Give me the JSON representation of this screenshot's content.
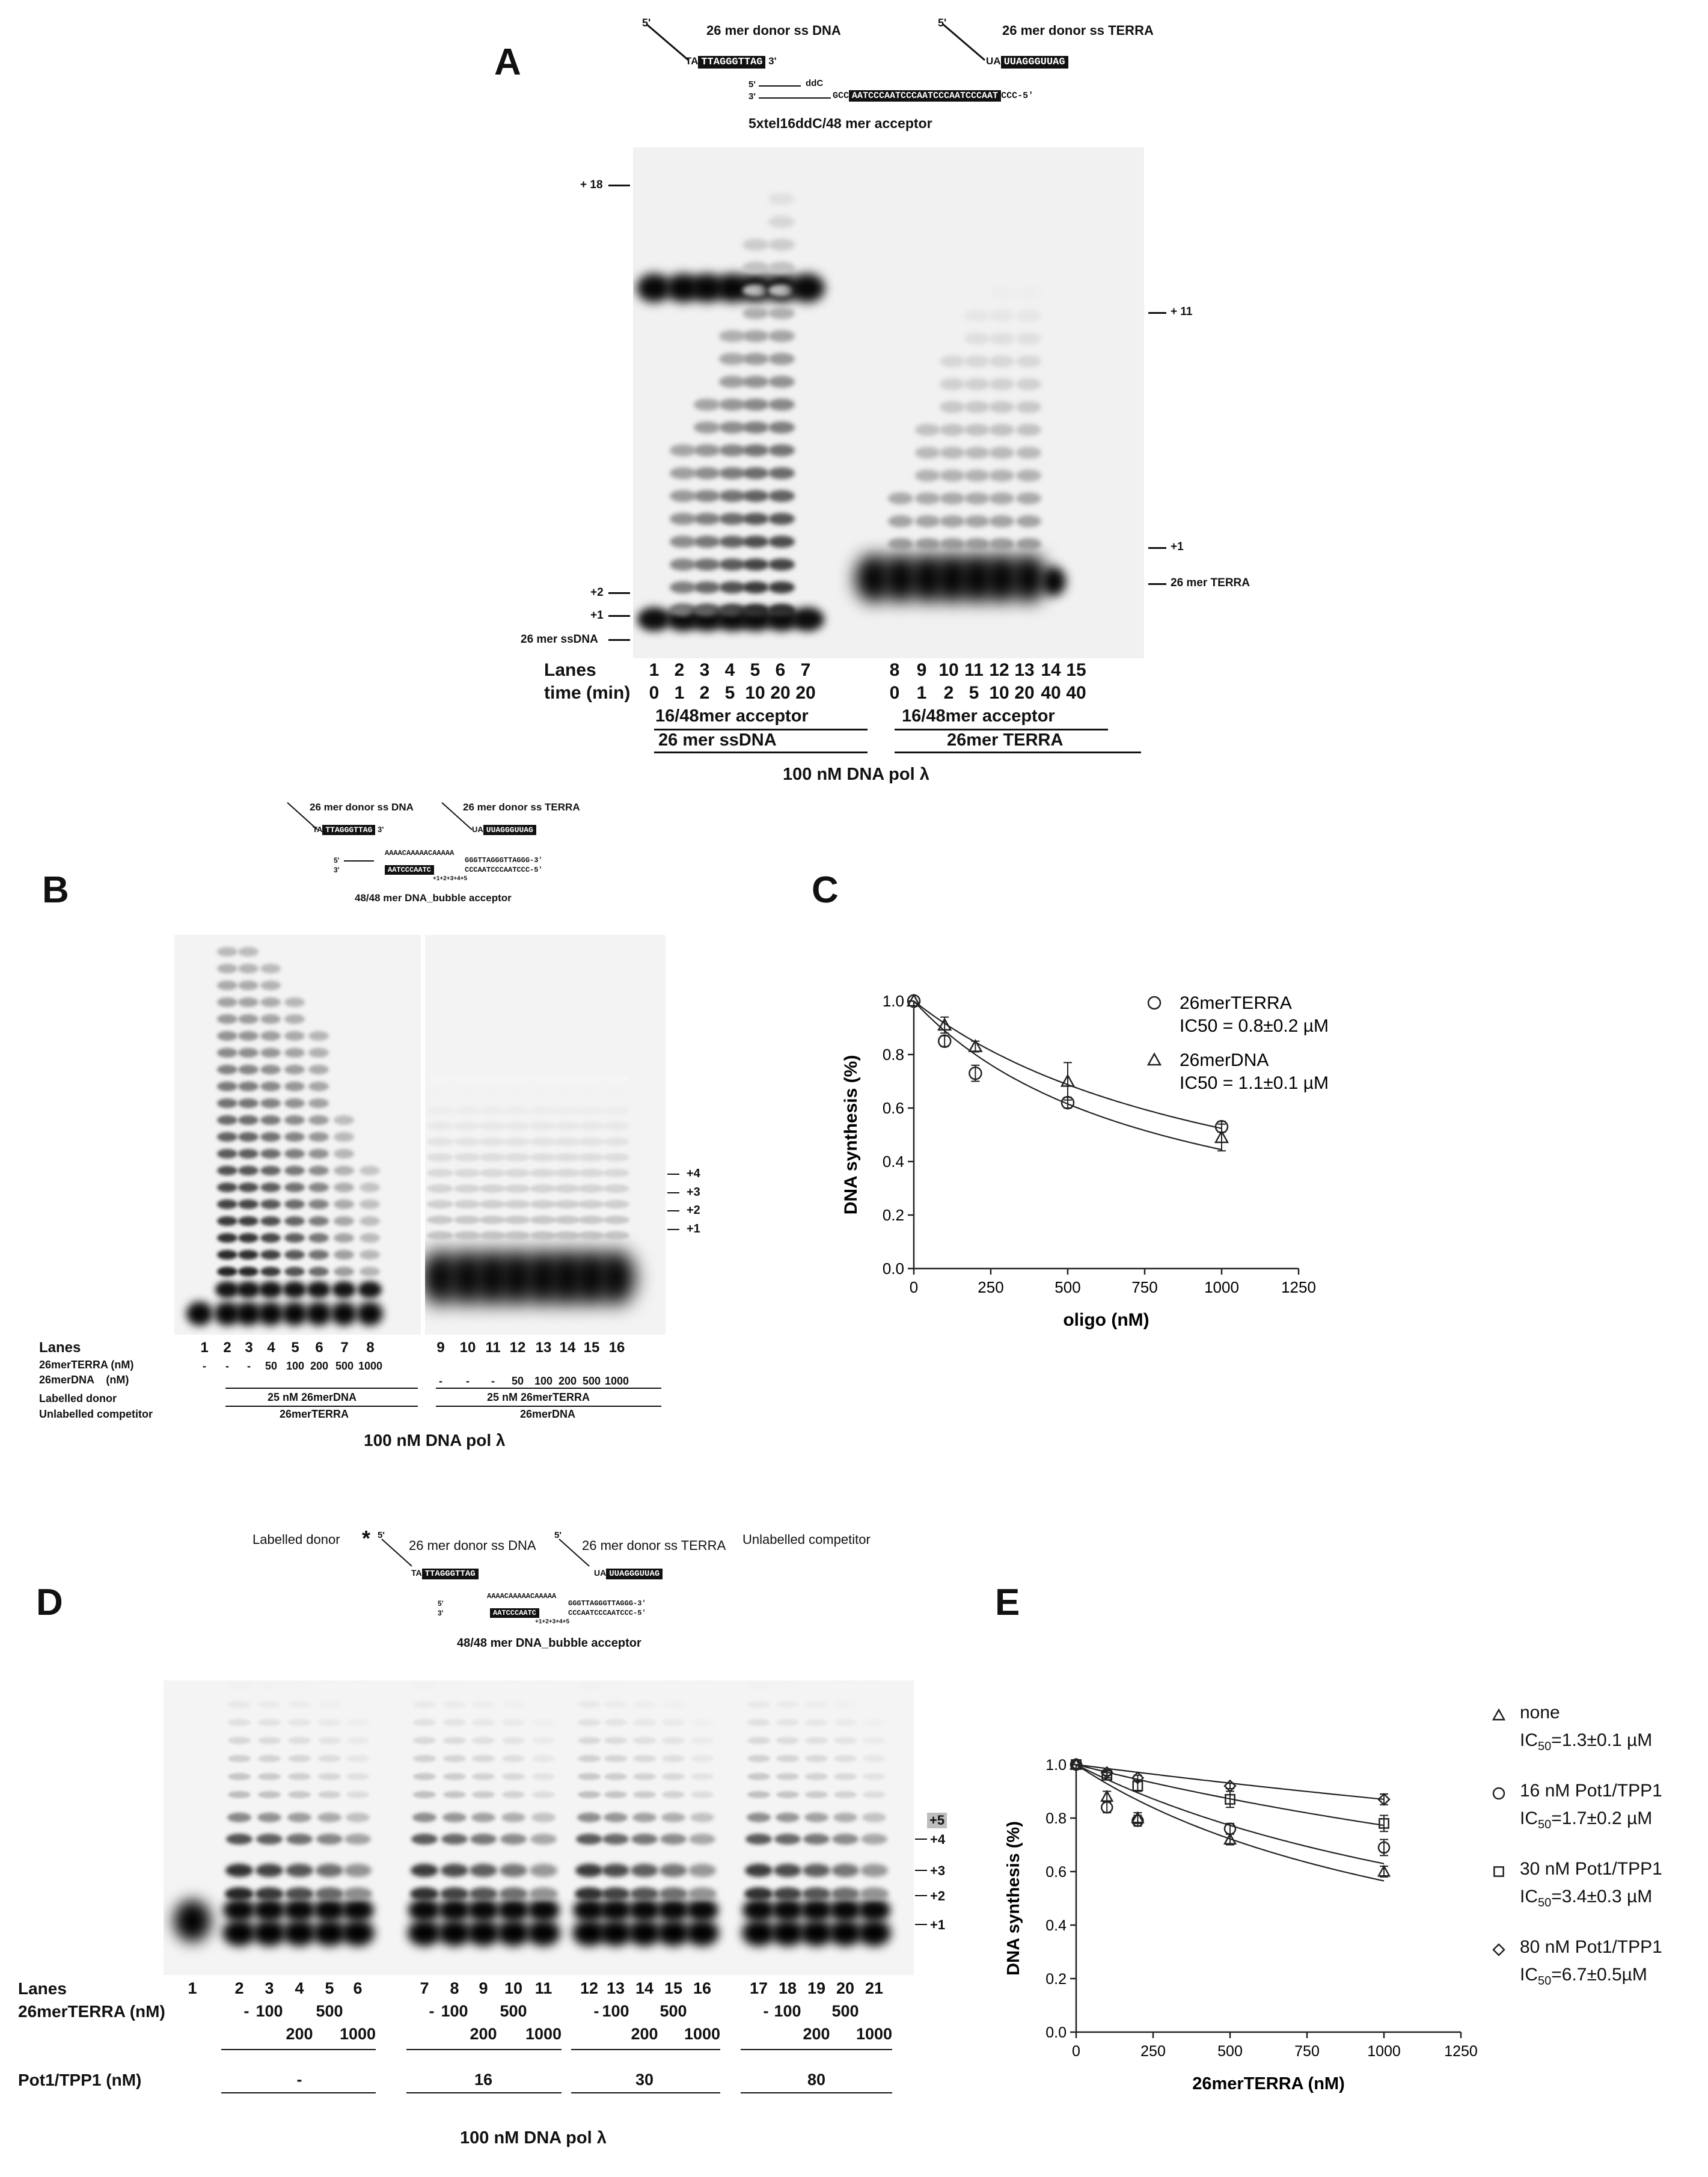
{
  "panels": {
    "a": "A",
    "b": "B",
    "c": "C",
    "d": "D",
    "e": "E"
  },
  "panel_a": {
    "donor_dna": "26 mer donor ss DNA",
    "donor_terra": "26 mer donor ss TERRA",
    "donor_dna_seq": "TTAGGGTTAG",
    "donor_dna_pre": "TA",
    "donor_terra_seq": "UUAGGGUUAG",
    "donor_terra_pre": "UA",
    "five": "5'",
    "three": "3'",
    "ddc": "ddC",
    "acceptor_seq_pre": "GCC",
    "acceptor_seq": "AATCCCAATCCCAATCCCAATCCCAAT",
    "acceptor_seq_post": "CCC-5'",
    "acceptor_name": "5xtel16ddC/48 mer acceptor",
    "markers": {
      "p18": "+ 18",
      "p11": "+ 11",
      "p2": "+2",
      "p1": "+1",
      "ssdna": "26 mer ssDNA",
      "p1r": "+1",
      "terra": "26 mer TERRA"
    },
    "lanes_label": "Lanes",
    "time_label": "time (min)",
    "lanes": [
      "1",
      "2",
      "3",
      "4",
      "5",
      "6",
      "7",
      "8",
      "9",
      "10",
      "11",
      "12",
      "13",
      "14",
      "15"
    ],
    "times": [
      "0",
      "1",
      "2",
      "5",
      "10",
      "20",
      "20",
      "0",
      "1",
      "2",
      "5",
      "10",
      "20",
      "40",
      "40"
    ],
    "acceptor_left": "16/48mer acceptor",
    "acceptor_right": "16/48mer acceptor",
    "group_left": "26 mer ssDNA",
    "group_right": "26mer TERRA",
    "enzyme": "100 nM DNA pol λ"
  },
  "panel_b": {
    "donor_dna": "26 mer donor ss DNA",
    "donor_terra": "26 mer donor ss TERRA",
    "bubble_top": "AAAACAAAAACAAAAA",
    "bubble_right1": "GGGTTAGGGTTAGGG-3'",
    "bubble_right2": "CCCAATCCCAATCCC-5'",
    "bubble_seq": "AATCCCAATC",
    "bubble_nums": "+1+2+3+4+5",
    "acceptor_name": "48/48 mer DNA_bubble acceptor",
    "markers": [
      "+4",
      "+3",
      "+2",
      "+1"
    ],
    "lanes_label": "Lanes",
    "terra_label": "26merTERRA (nM)",
    "dna_label": "26merDNA    (nM)",
    "labelled_label": "Labelled donor",
    "competitor_label": "Unlabelled competitor",
    "lanes_left": [
      "1",
      "2",
      "3",
      "4",
      "5",
      "6",
      "7",
      "8"
    ],
    "conc_left": [
      "-",
      "-",
      "-",
      "50",
      "100",
      "200",
      "500",
      "1000"
    ],
    "lanes_right": [
      "9",
      "10",
      "11",
      "12",
      "13",
      "14",
      "15",
      "16"
    ],
    "conc_right": [
      "-",
      "-",
      "-",
      "50",
      "100",
      "200",
      "500",
      "1000"
    ],
    "labelled_left": "25 nM 26merDNA",
    "labelled_right": "25 nM 26merTERRA",
    "competitor_left": "26merTERRA",
    "competitor_right": "26merDNA",
    "enzyme": "100 nM DNA pol λ"
  },
  "panel_d": {
    "labelled_donor": "Labelled donor",
    "star": "*",
    "donor_dna": "26 mer donor ss DNA",
    "donor_terra": "26 mer donor ss TERRA",
    "unlabelled": "Unlabelled competitor",
    "acceptor_name": "48/48 mer DNA_bubble acceptor",
    "markers": [
      "+5",
      "+4",
      "+3",
      "+2",
      "+1"
    ],
    "lanes_label": "Lanes",
    "terra_label": "26merTERRA (nM)",
    "pot_label": "Pot1/TPP1 (nM)",
    "lanes": [
      "1",
      "2",
      "3",
      "4",
      "5",
      "6",
      "7",
      "8",
      "9",
      "10",
      "11",
      "12",
      "13",
      "14",
      "15",
      "16",
      "17",
      "18",
      "19",
      "20",
      "21"
    ],
    "conc_top": [
      "-",
      "100",
      "500"
    ],
    "conc_bot": [
      "200",
      "1000"
    ],
    "pot_values": [
      "-",
      "16",
      "30",
      "80"
    ],
    "enzyme": "100 nM DNA pol λ"
  },
  "chart_data": [
    {
      "type": "scatter",
      "title": "",
      "xlabel": "oligo (nM)",
      "ylabel": "DNA synthesis (%)",
      "xlim": [
        0,
        1250
      ],
      "ylim": [
        0,
        1.0
      ],
      "xticks": [
        "0",
        "250",
        "500",
        "750",
        "1000",
        "1250"
      ],
      "yticks": [
        "0.0",
        "0.2",
        "0.4",
        "0.6",
        "0.8",
        "1.0"
      ],
      "series": [
        {
          "name": "26merTERRA",
          "note": "IC50 = 0.8±0.2 µM",
          "marker": "circle",
          "x": [
            0,
            100,
            200,
            500,
            1000
          ],
          "y": [
            1.0,
            0.85,
            0.73,
            0.62,
            0.53
          ],
          "err": [
            0,
            0.02,
            0.03,
            0.02,
            0.02
          ],
          "fit_ic50": 800
        },
        {
          "name": "26merDNA",
          "note": "IC50 = 1.1±0.1 µM",
          "marker": "triangle",
          "x": [
            0,
            100,
            200,
            500,
            1000
          ],
          "y": [
            1.0,
            0.91,
            0.83,
            0.7,
            0.49
          ],
          "err": [
            0,
            0.03,
            0.02,
            0.07,
            0.05
          ],
          "fit_ic50": 1100
        }
      ]
    },
    {
      "type": "scatter",
      "title": "",
      "xlabel": "26merTERRA (nM)",
      "ylabel": "DNA synthesis (%)",
      "xlim": [
        0,
        1250
      ],
      "ylim": [
        0,
        1.0
      ],
      "xticks": [
        "0",
        "250",
        "500",
        "750",
        "1000",
        "1250"
      ],
      "yticks": [
        "0.0",
        "0.2",
        "0.4",
        "0.6",
        "0.8",
        "1.0"
      ],
      "series": [
        {
          "name": "none",
          "note": "IC50=1.3±0.1 µM",
          "marker": "triangle",
          "x": [
            0,
            100,
            200,
            500,
            1000
          ],
          "y": [
            1.0,
            0.88,
            0.8,
            0.72,
            0.6
          ],
          "err": [
            0,
            0.02,
            0.02,
            0.02,
            0.02
          ],
          "fit_ic50": 1300
        },
        {
          "name": "16 nM Pot1/TPP1",
          "note": "IC50=1.7±0.2 µM",
          "marker": "circle",
          "x": [
            0,
            100,
            200,
            500,
            1000
          ],
          "y": [
            1.0,
            0.84,
            0.79,
            0.76,
            0.69
          ],
          "err": [
            0,
            0.02,
            0.02,
            0.02,
            0.03
          ],
          "fit_ic50": 1700
        },
        {
          "name": "30 nM Pot1/TPP1",
          "note": "IC50=3.4±0.3 µM",
          "marker": "square",
          "x": [
            0,
            100,
            200,
            500,
            1000
          ],
          "y": [
            1.0,
            0.96,
            0.92,
            0.87,
            0.78
          ],
          "err": [
            0,
            0.01,
            0.02,
            0.03,
            0.03
          ],
          "fit_ic50": 3400
        },
        {
          "name": "80 nM Pot1/TPP1",
          "note": "IC50=6.7±0.5µM",
          "marker": "diamond",
          "x": [
            0,
            100,
            200,
            500,
            1000
          ],
          "y": [
            1.0,
            0.97,
            0.95,
            0.92,
            0.87
          ],
          "err": [
            0,
            0.01,
            0.01,
            0.01,
            0.02
          ],
          "fit_ic50": 6700
        }
      ]
    }
  ]
}
